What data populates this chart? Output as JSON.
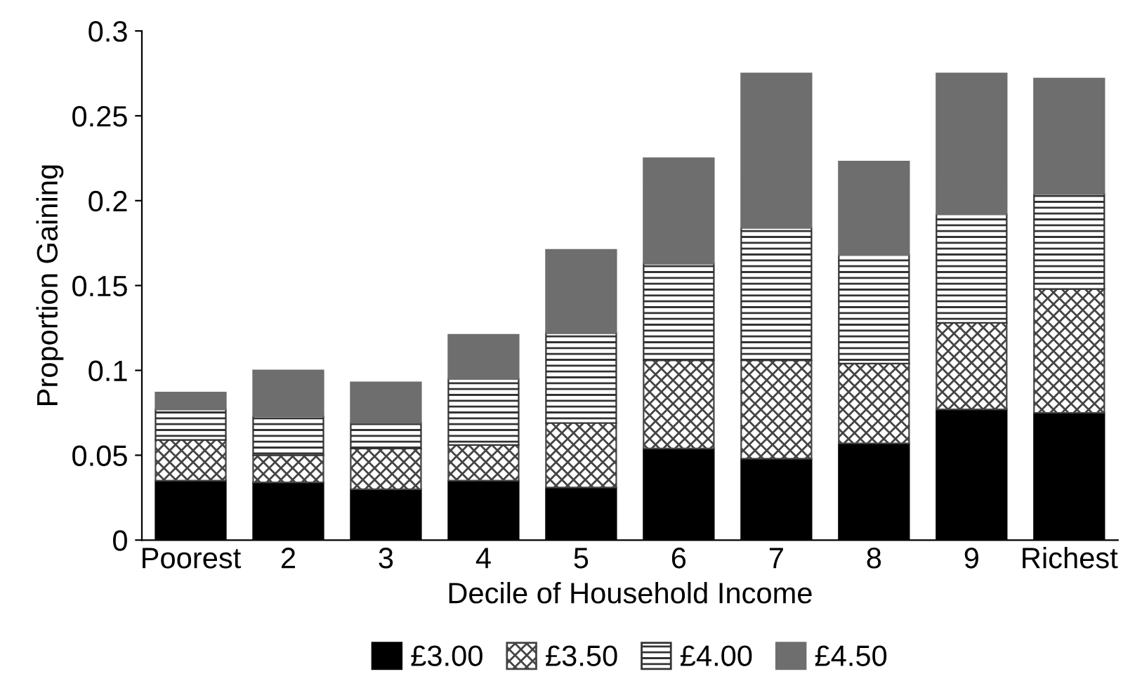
{
  "chart_data": {
    "type": "bar",
    "stacked": true,
    "xlabel": "Decile of Household Income",
    "ylabel": "Proportion Gaining",
    "categories": [
      "Poorest",
      "2",
      "3",
      "4",
      "5",
      "6",
      "7",
      "8",
      "9",
      "Richest"
    ],
    "series": [
      {
        "name": "£3.00",
        "color": "#000000",
        "values": [
          0.035,
          0.034,
          0.03,
          0.035,
          0.031,
          0.054,
          0.048,
          0.057,
          0.077,
          0.075
        ]
      },
      {
        "name": "£3.50",
        "color": "#444444",
        "values": [
          0.024,
          0.016,
          0.024,
          0.021,
          0.038,
          0.052,
          0.058,
          0.047,
          0.051,
          0.073
        ]
      },
      {
        "name": "£4.00",
        "color": "#333333",
        "values": [
          0.018,
          0.023,
          0.015,
          0.039,
          0.053,
          0.057,
          0.078,
          0.064,
          0.064,
          0.056
        ]
      },
      {
        "name": "£4.50",
        "color": "#6e6e6e",
        "values": [
          0.01,
          0.027,
          0.024,
          0.026,
          0.049,
          0.062,
          0.091,
          0.055,
          0.083,
          0.068
        ]
      }
    ],
    "ylim": [
      0,
      0.3
    ],
    "yticks": [
      0,
      0.05,
      0.1,
      0.15,
      0.2,
      0.25,
      0.3
    ],
    "grid": false,
    "legend": "bottom"
  }
}
